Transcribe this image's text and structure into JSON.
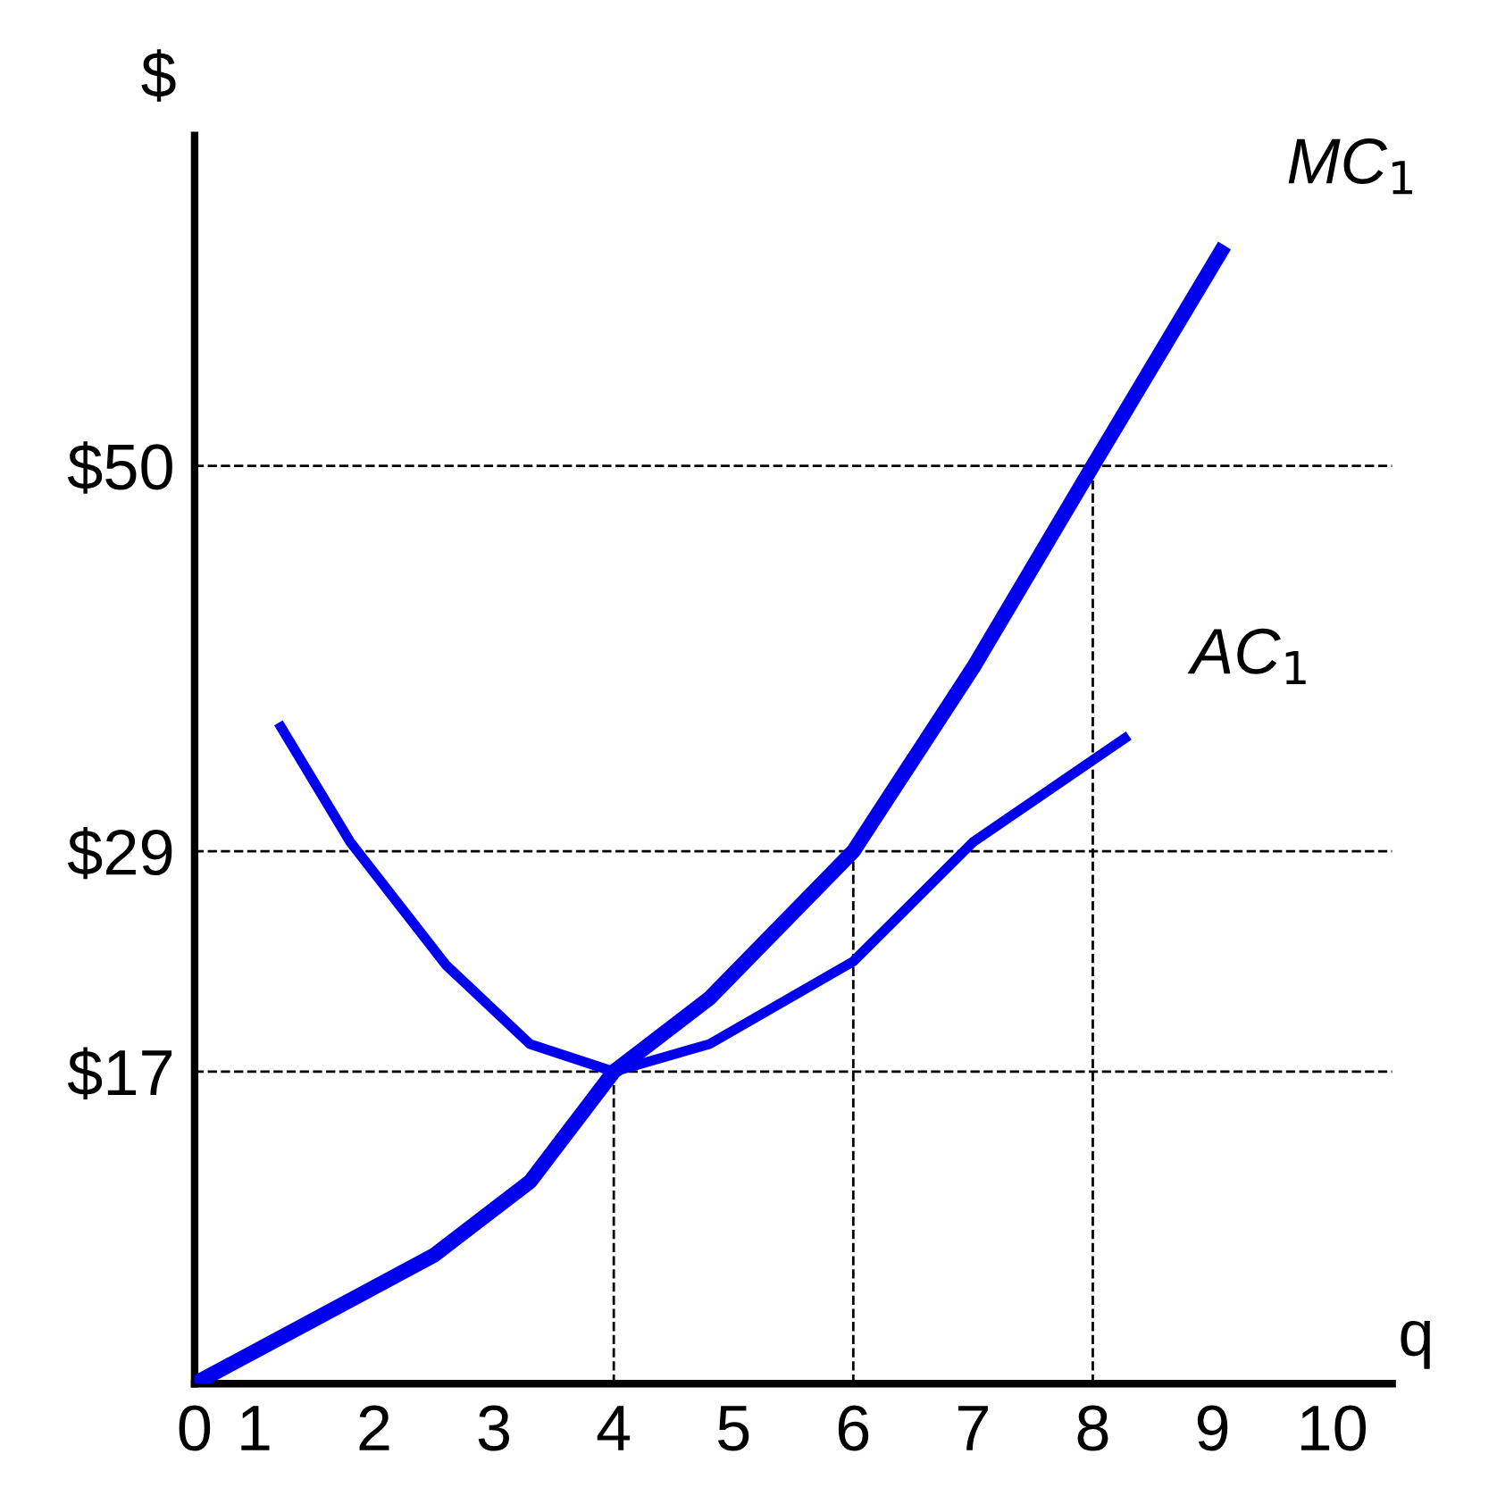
{
  "chart_data": {
    "type": "line",
    "xlabel": "q",
    "ylabel": "$",
    "xlim": [
      0.5,
      10.5
    ],
    "ylim": [
      0,
      68
    ],
    "xticks": [
      {
        "value": 0.5,
        "label": "0"
      },
      1,
      2,
      3,
      4,
      5,
      6,
      7,
      8,
      9,
      10
    ],
    "yticks": [
      {
        "value": 17,
        "label": "$17"
      },
      {
        "value": 29,
        "label": "$29"
      },
      {
        "value": 50,
        "label": "$50"
      }
    ],
    "series": [
      {
        "name": "MC$_{1}$",
        "color": "#0000ee",
        "x": [
          0.5,
          1.5,
          2.5,
          3.3,
          4,
          4.8,
          6,
          7,
          8,
          9.1
        ],
        "values": [
          0,
          3.5,
          7,
          11,
          17,
          21,
          29,
          39,
          50,
          62
        ]
      },
      {
        "name": "AC$_{1}$",
        "color": "#0000ee",
        "x": [
          1.2,
          1.8,
          2.6,
          3.3,
          4,
          4.8,
          6,
          7,
          8.3
        ],
        "values": [
          36,
          29.5,
          22.8,
          18.5,
          17,
          18.5,
          23,
          29.5,
          35.3
        ]
      }
    ],
    "ref_lines": [
      {
        "axis": "y",
        "value": 17,
        "line_style": "dashed",
        "color": "#000000"
      },
      {
        "axis": "y",
        "value": 29,
        "line_style": "dashed",
        "color": "#000000"
      },
      {
        "axis": "y",
        "value": 50,
        "line_style": "dashed",
        "color": "#000000"
      },
      {
        "axis": "x",
        "value": 4,
        "line_style": "dashed",
        "color": "#000000"
      },
      {
        "axis": "x",
        "value": 6,
        "line_style": "dashed",
        "color": "#000000"
      },
      {
        "axis": "x",
        "value": 8,
        "line_style": "dashed",
        "color": "#000000"
      }
    ],
    "grid": false,
    "legend": false,
    "marker": "none",
    "line_style": "solid"
  }
}
